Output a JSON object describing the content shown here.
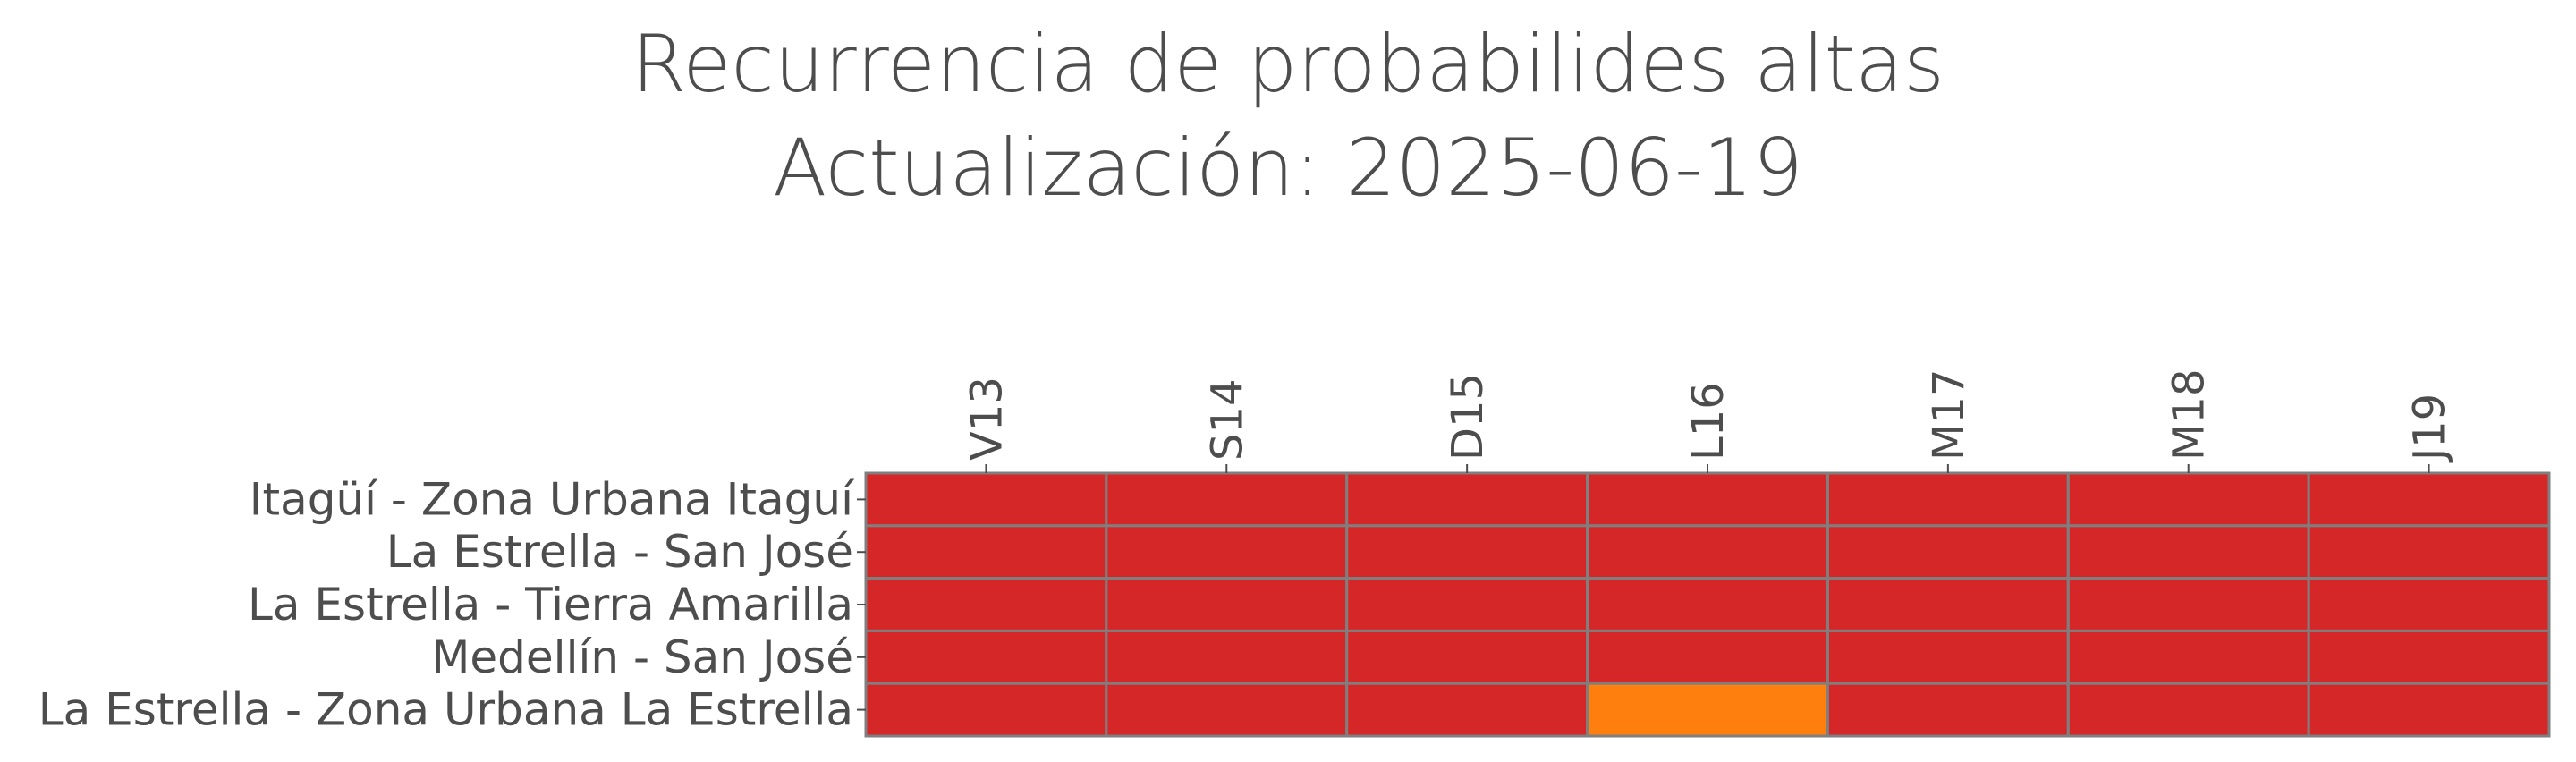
{
  "chart_data": {
    "type": "heatmap",
    "title": "Recurrencia de probabilides altas",
    "subtitle": "Actualización: 2025-06-19",
    "columns": [
      "V13",
      "S14",
      "D15",
      "L16",
      "M17",
      "M18",
      "J19"
    ],
    "rows": [
      "Itagüí - Zona Urbana Itaguí",
      "La Estrella - San José",
      "La Estrella - Tierra Amarilla",
      "Medellín - San José",
      "La Estrella - Zona Urbana La Estrella"
    ],
    "values": [
      [
        "red",
        "red",
        "red",
        "red",
        "red",
        "red",
        "red"
      ],
      [
        "red",
        "red",
        "red",
        "red",
        "red",
        "red",
        "red"
      ],
      [
        "red",
        "red",
        "red",
        "red",
        "red",
        "red",
        "red"
      ],
      [
        "red",
        "red",
        "red",
        "red",
        "red",
        "red",
        "red"
      ],
      [
        "red",
        "red",
        "red",
        "orange",
        "red",
        "red",
        "red"
      ]
    ],
    "colors": {
      "red": "#d62728",
      "orange": "#ff7f0e",
      "grid": "#7f7f7f",
      "text": "#4d4d4d"
    },
    "legend": "none",
    "x_tick_position": "top",
    "x_tick_rotation": "vertical"
  }
}
